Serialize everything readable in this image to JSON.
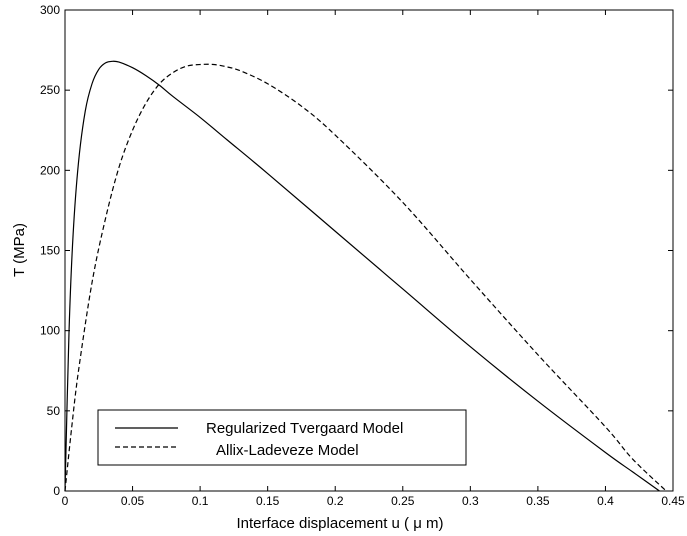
{
  "chart_data": {
    "type": "line",
    "xlabel": "Interface displacement u ( μ m)",
    "ylabel": "T (MPa)",
    "xlim": [
      0,
      0.45
    ],
    "ylim": [
      0,
      300
    ],
    "xticks": [
      0,
      0.05,
      0.1,
      0.15,
      0.2,
      0.25,
      0.3,
      0.35,
      0.4,
      0.45
    ],
    "xtick_labels": [
      "0",
      "0.05",
      "0.1",
      "0.15",
      "0.2",
      "0.25",
      "0.3",
      "0.35",
      "0.4",
      "0.45"
    ],
    "yticks": [
      0,
      50,
      100,
      150,
      200,
      250,
      300
    ],
    "ytick_labels": [
      "0",
      "50",
      "100",
      "150",
      "200",
      "250",
      "300"
    ],
    "grid": false,
    "legend_position": "bottom-left",
    "series": [
      {
        "name": "Regularized Tvergaard Model",
        "style": "solid",
        "color": "#000000",
        "x": [
          0,
          0.003,
          0.006,
          0.01,
          0.015,
          0.02,
          0.025,
          0.03,
          0.035,
          0.04,
          0.05,
          0.06,
          0.07,
          0.08,
          0.1,
          0.12,
          0.15,
          0.2,
          0.25,
          0.3,
          0.35,
          0.4,
          0.42,
          0.44
        ],
        "y": [
          0,
          100,
          160,
          205,
          237,
          254,
          263,
          267,
          268,
          267.5,
          264,
          259,
          253,
          246,
          233,
          219,
          198,
          162,
          126,
          90,
          56,
          24,
          12,
          0
        ]
      },
      {
        "name": "Allix-Ladeveze Model",
        "style": "dashed",
        "color": "#000000",
        "x": [
          0,
          0.005,
          0.01,
          0.02,
          0.03,
          0.04,
          0.05,
          0.06,
          0.07,
          0.08,
          0.09,
          0.1,
          0.11,
          0.12,
          0.13,
          0.15,
          0.175,
          0.2,
          0.25,
          0.3,
          0.35,
          0.4,
          0.42,
          0.445
        ],
        "y": [
          0,
          40,
          75,
          130,
          170,
          202,
          225,
          242,
          254,
          261,
          265,
          266,
          266,
          264.5,
          262,
          254,
          240,
          222,
          180,
          132,
          85,
          40,
          20,
          0
        ]
      }
    ]
  }
}
